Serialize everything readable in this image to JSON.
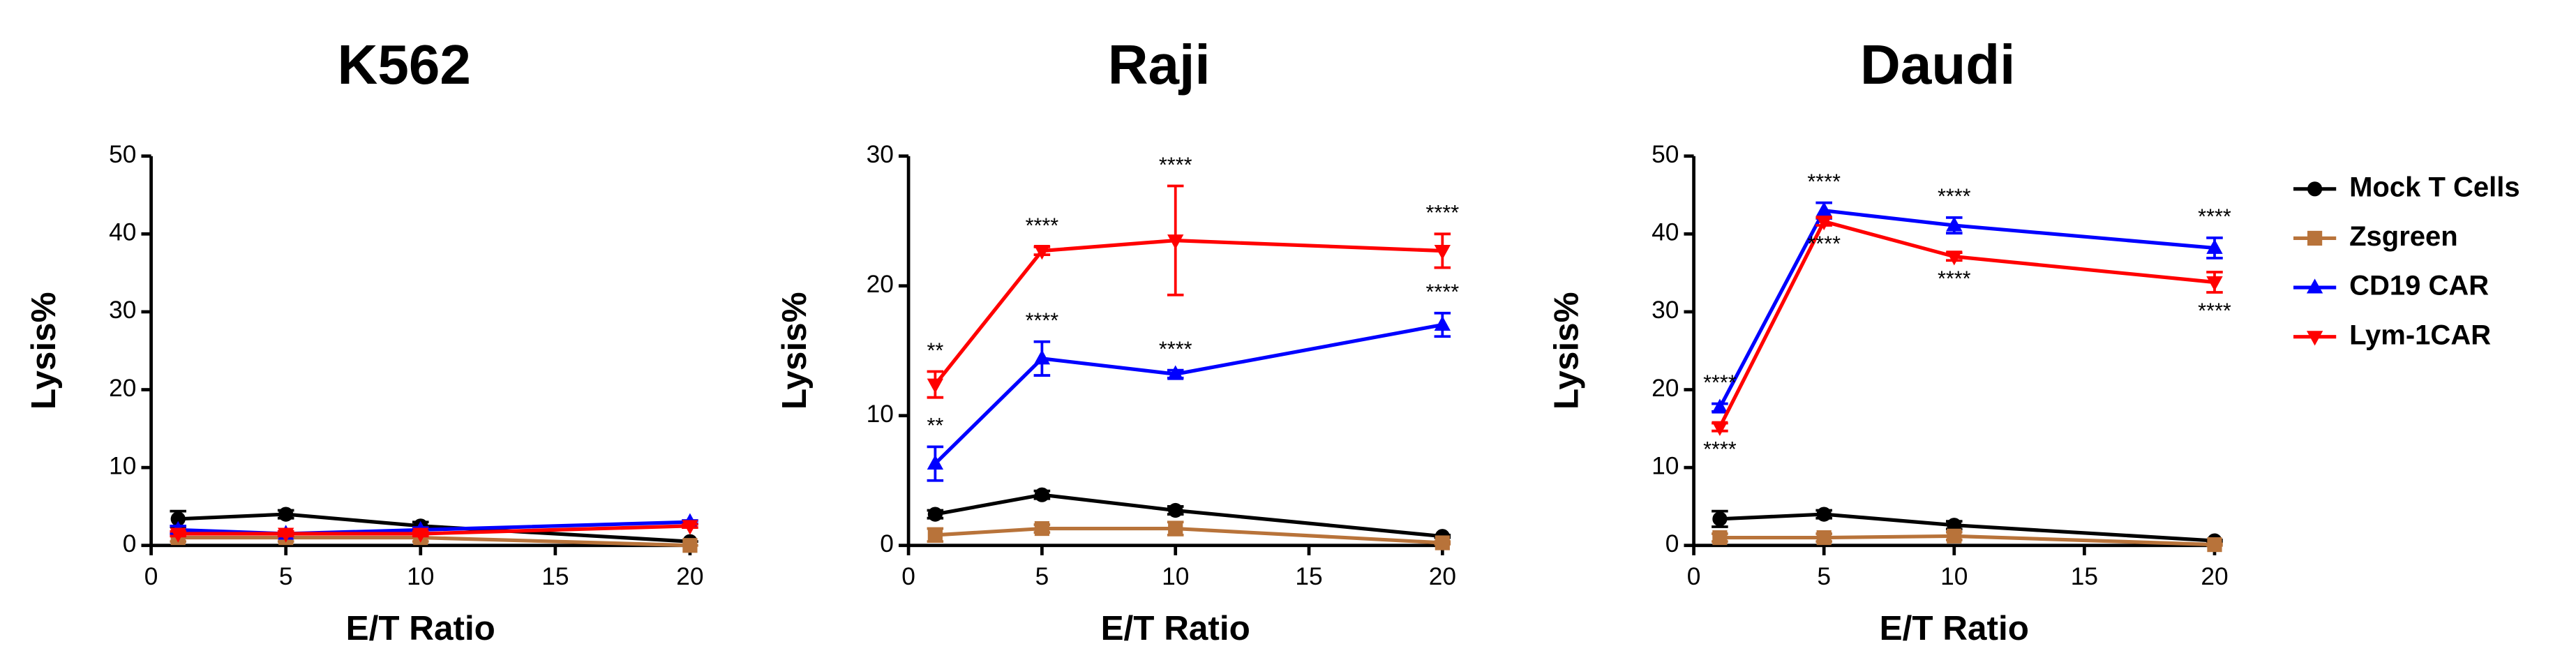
{
  "chart_data": [
    {
      "type": "line",
      "title": "K562",
      "x_label": "E/T Ratio",
      "y_label": "Lysis%",
      "x": [
        1,
        5,
        10,
        20
      ],
      "xlim": [
        0,
        20
      ],
      "xticks": [
        0,
        5,
        10,
        15,
        20
      ],
      "ylim": [
        0,
        50
      ],
      "yticks": [
        0,
        10,
        20,
        30,
        40,
        50
      ],
      "series": [
        {
          "name": "Mock T Cells",
          "color": "#000000",
          "marker": "circle",
          "values": [
            3.4,
            4.0,
            2.5,
            0.5
          ],
          "errors": [
            1.0,
            0.5,
            0.5,
            0.0
          ]
        },
        {
          "name": "Zsgreen",
          "color": "#b8733a",
          "marker": "square",
          "values": [
            1.0,
            1.0,
            1.0,
            0.0
          ],
          "errors": [
            0.5,
            0.5,
            0.5,
            0.0
          ]
        },
        {
          "name": "CD19 CAR",
          "color": "#0000ff",
          "marker": "triangle-up",
          "values": [
            2.0,
            1.5,
            2.0,
            3.0
          ],
          "errors": [
            0.5,
            0.3,
            0.3,
            0.2
          ]
        },
        {
          "name": "Lym-1CAR",
          "color": "#ff0000",
          "marker": "triangle-down",
          "values": [
            1.5,
            1.5,
            1.5,
            2.5
          ],
          "errors": [
            0.3,
            0.3,
            0.3,
            0.2
          ]
        }
      ]
    },
    {
      "type": "line",
      "title": "Raji",
      "x_label": "E/T Ratio",
      "y_label": "Lysis%",
      "x": [
        1,
        5,
        10,
        20
      ],
      "xlim": [
        0,
        20
      ],
      "xticks": [
        0,
        5,
        10,
        15,
        20
      ],
      "ylim": [
        0,
        30
      ],
      "yticks": [
        0,
        10,
        20,
        30
      ],
      "series": [
        {
          "name": "Mock T Cells",
          "color": "#000000",
          "marker": "circle",
          "values": [
            2.4,
            3.9,
            2.7,
            0.7
          ],
          "errors": [
            0.3,
            0.3,
            0.3,
            0.1
          ]
        },
        {
          "name": "Zsgreen",
          "color": "#b8733a",
          "marker": "square",
          "values": [
            0.8,
            1.3,
            1.3,
            0.2
          ],
          "errors": [
            0.5,
            0.3,
            0.5,
            0.1
          ]
        },
        {
          "name": "CD19 CAR",
          "color": "#0000ff",
          "marker": "triangle-up",
          "values": [
            6.3,
            14.4,
            13.2,
            17.0
          ],
          "errors": [
            1.3,
            1.3,
            0.3,
            0.9
          ],
          "annotations": [
            "**",
            "****",
            "****",
            "****"
          ],
          "annotation_side": "above"
        },
        {
          "name": "Lym-1CAR",
          "color": "#ff0000",
          "marker": "triangle-down",
          "values": [
            12.4,
            22.7,
            23.5,
            22.7
          ],
          "errors": [
            1.0,
            0.3,
            4.2,
            1.3
          ],
          "annotations": [
            "**",
            "****",
            "****",
            "****"
          ],
          "annotation_side": "above"
        }
      ]
    },
    {
      "type": "line",
      "title": "Daudi",
      "x_label": "E/T Ratio",
      "y_label": "Lysis%",
      "x": [
        1,
        5,
        10,
        20
      ],
      "xlim": [
        0,
        20
      ],
      "xticks": [
        0,
        5,
        10,
        15,
        20
      ],
      "ylim": [
        0,
        50
      ],
      "yticks": [
        0,
        10,
        20,
        30,
        40,
        50
      ],
      "series": [
        {
          "name": "Mock T Cells",
          "color": "#000000",
          "marker": "circle",
          "values": [
            3.4,
            4.0,
            2.6,
            0.6
          ],
          "errors": [
            1.0,
            0.5,
            0.5,
            0.1
          ]
        },
        {
          "name": "Zsgreen",
          "color": "#b8733a",
          "marker": "square",
          "values": [
            1.0,
            1.0,
            1.2,
            0.1
          ],
          "errors": [
            0.5,
            0.5,
            0.5,
            0.1
          ]
        },
        {
          "name": "CD19 CAR",
          "color": "#0000ff",
          "marker": "triangle-up",
          "values": [
            17.7,
            43.0,
            41.1,
            38.2
          ],
          "errors": [
            0.5,
            1.0,
            1.0,
            1.3
          ],
          "annotations": [
            "****",
            "****",
            "****",
            "****"
          ],
          "annotation_side": "above"
        },
        {
          "name": "Lym-1CAR",
          "color": "#ff0000",
          "marker": "triangle-down",
          "values": [
            15.2,
            41.6,
            37.1,
            33.8
          ],
          "errors": [
            0.5,
            0.5,
            0.5,
            1.3
          ],
          "annotations": [
            "****",
            "****",
            "****",
            "****"
          ],
          "annotation_side": "below"
        }
      ]
    }
  ]
}
